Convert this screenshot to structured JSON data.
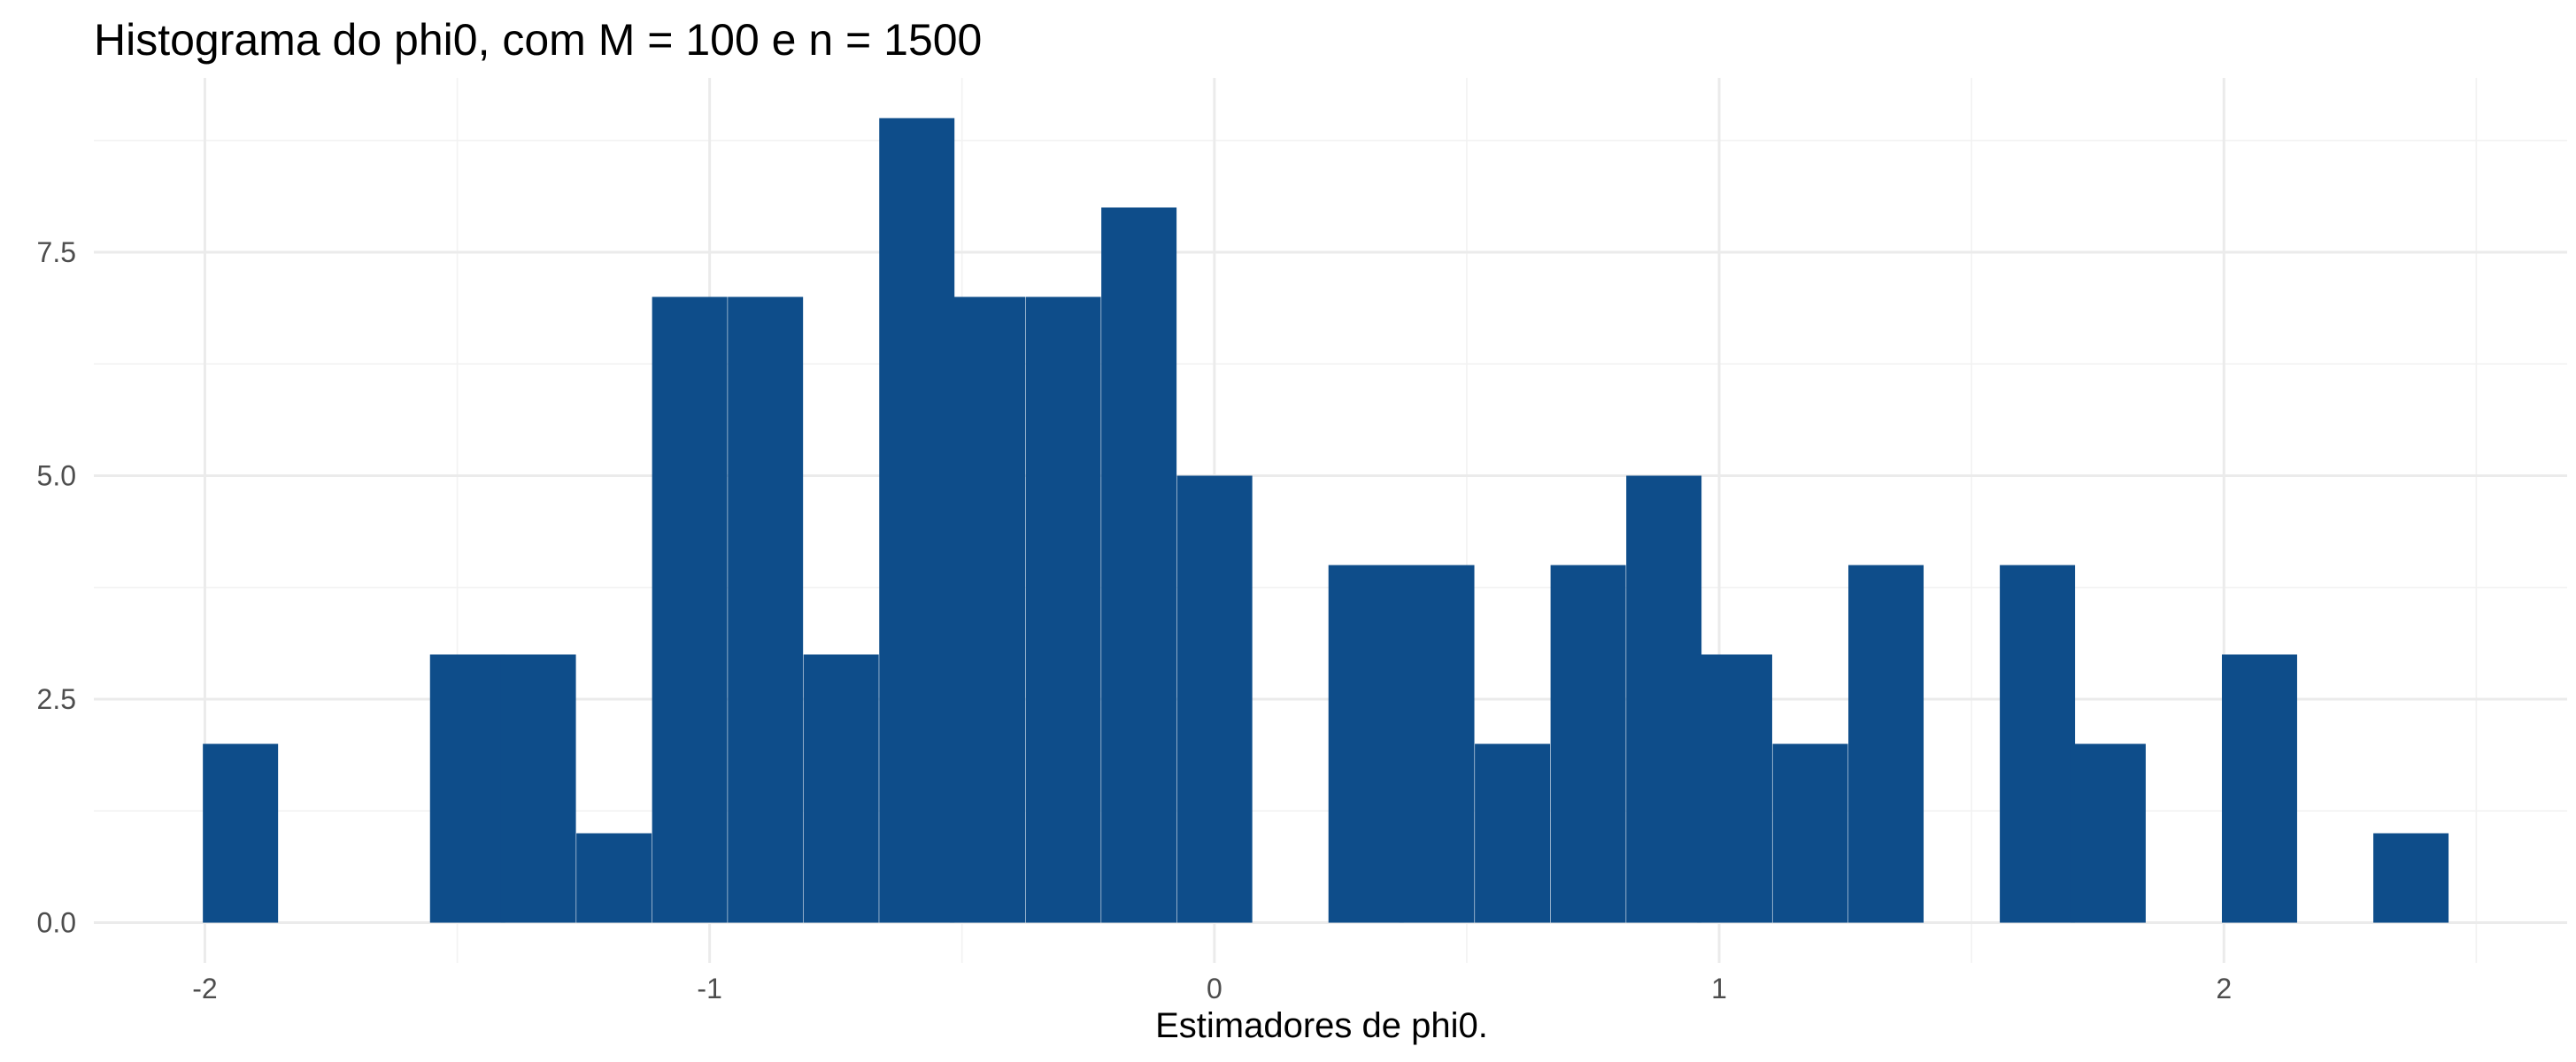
{
  "chart_data": {
    "type": "bar",
    "title": "Histograma do phi0, com M = 100 e n = 1500",
    "xlabel": "Estimadores de phi0.",
    "ylabel": "",
    "bar_color": "#0e4d8a",
    "xlim": [
      -2.22,
      2.68
    ],
    "ylim": [
      -0.45,
      9.45
    ],
    "x_ticks": [
      -2,
      -1,
      0,
      1,
      2
    ],
    "x_tick_labels": [
      "-2",
      "-1",
      "0",
      "1",
      "2"
    ],
    "y_ticks": [
      0,
      2.5,
      5,
      7.5
    ],
    "y_tick_labels": [
      "0.0",
      "2.5",
      "5.0",
      "7.5"
    ],
    "grid": true,
    "bin_width": 0.148,
    "bin_centers": [
      -1.93,
      -1.78,
      -1.63,
      -1.48,
      -1.34,
      -1.19,
      -1.04,
      -0.89,
      -0.74,
      -0.59,
      -0.45,
      -0.3,
      -0.15,
      0.0,
      0.15,
      0.3,
      0.44,
      0.59,
      0.74,
      0.89,
      1.03,
      1.18,
      1.33,
      1.48,
      1.63,
      1.77,
      1.92,
      2.07,
      2.22,
      2.37
    ],
    "values": [
      2,
      0,
      0,
      3,
      3,
      1,
      7,
      7,
      3,
      9,
      7,
      7,
      8,
      5,
      0,
      4,
      4,
      2,
      4,
      5,
      3,
      2,
      4,
      0,
      4,
      2,
      0,
      3,
      0,
      1
    ]
  }
}
